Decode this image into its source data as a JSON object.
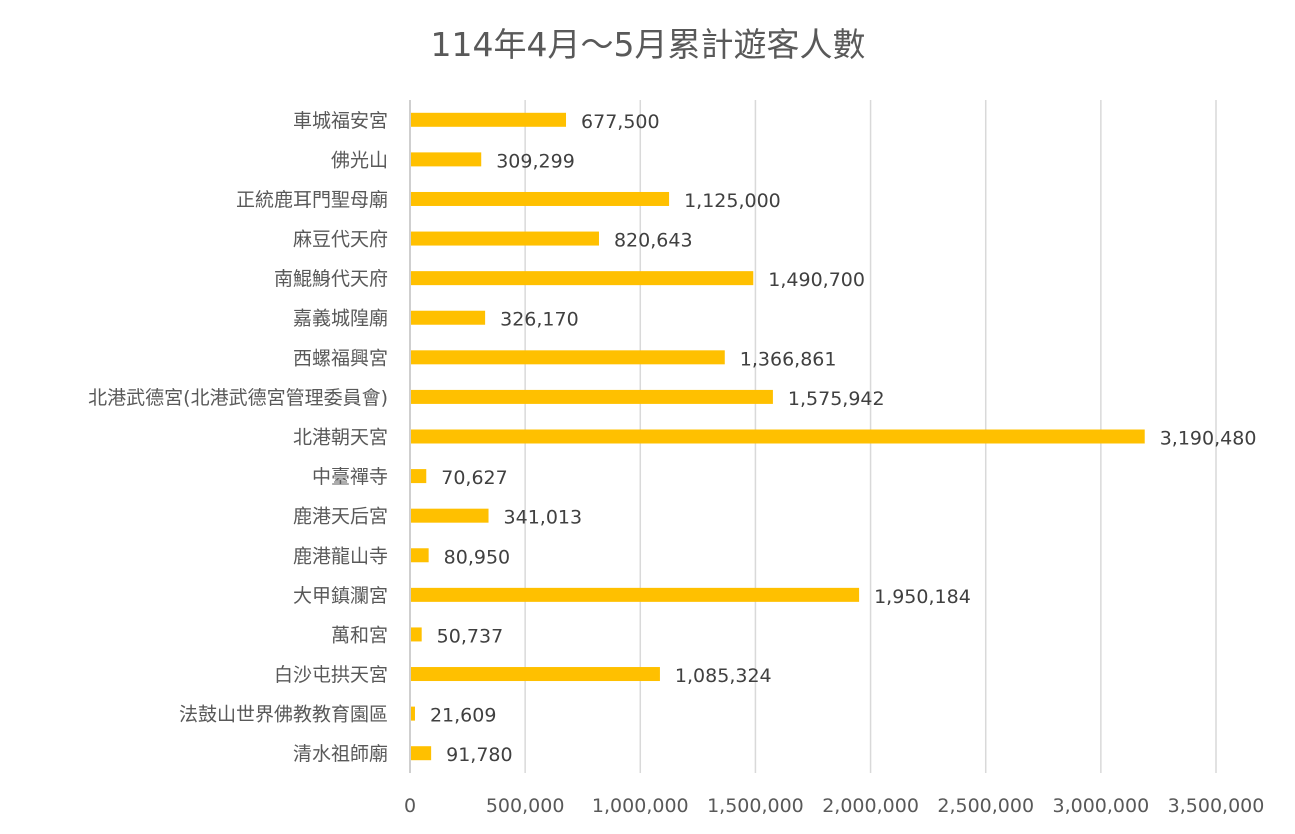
{
  "chart_data": {
    "type": "bar",
    "orientation": "horizontal",
    "title": "114年4月～5月累計遊客人數",
    "xlabel": "",
    "ylabel": "",
    "xlim": [
      0,
      3500000
    ],
    "grid": true,
    "legend": "none",
    "bar_color": "#FFC000",
    "x_ticks": [
      "0",
      "500,000",
      "1,000,000",
      "1,500,000",
      "2,000,000",
      "2,500,000",
      "3,000,000",
      "3,500,000"
    ],
    "x_tick_values": [
      0,
      500000,
      1000000,
      1500000,
      2000000,
      2500000,
      3000000,
      3500000
    ],
    "categories": [
      "車城福安宮",
      "佛光山",
      "正統鹿耳門聖母廟",
      "麻豆代天府",
      "南鯤鯓代天府",
      "嘉義城隍廟",
      "西螺福興宮",
      "北港武德宮(北港武德宮管理委員會)",
      "北港朝天宮",
      "中臺禪寺",
      "鹿港天后宮",
      "鹿港龍山寺",
      "大甲鎮瀾宮",
      "萬和宮",
      "白沙屯拱天宮",
      "法鼓山世界佛教教育園區",
      "清水祖師廟"
    ],
    "values": [
      677500,
      309299,
      1125000,
      820643,
      1490700,
      326170,
      1366861,
      1575942,
      3190480,
      70627,
      341013,
      80950,
      1950184,
      50737,
      1085324,
      21609,
      91780
    ],
    "data_labels": [
      "677,500",
      "309,299",
      "1,125,000",
      "820,643",
      "1,490,700",
      "326,170",
      "1,366,861",
      "1,575,942",
      "3,190,480",
      "70,627",
      "341,013",
      "80,950",
      "1,950,184",
      "50,737",
      "1,085,324",
      "21,609",
      "91,780"
    ]
  }
}
